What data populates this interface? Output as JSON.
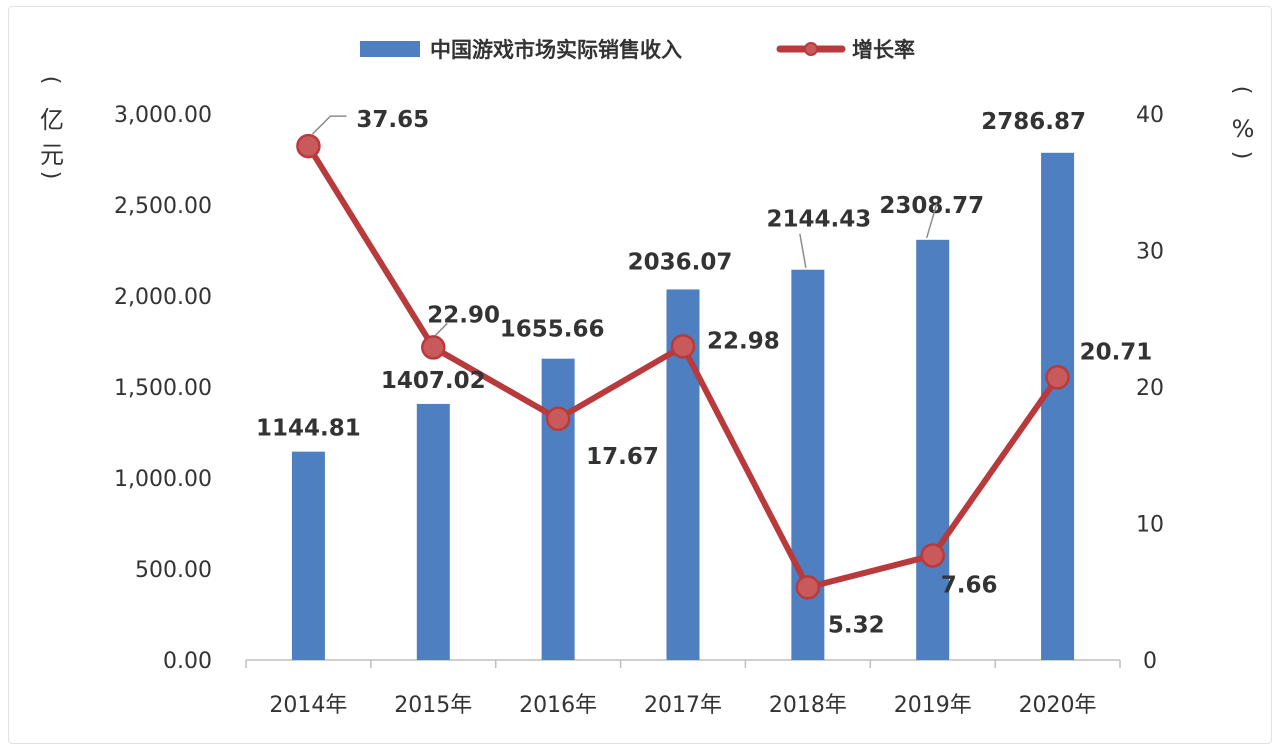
{
  "chart_data": {
    "type": "bar",
    "categories": [
      "2014年",
      "2015年",
      "2016年",
      "2017年",
      "2018年",
      "2019年",
      "2020年"
    ],
    "series": [
      {
        "name": "中国游戏市场实际销售收入",
        "type": "bar",
        "axis": "left",
        "values": [
          1144.81,
          1407.02,
          1655.66,
          2036.07,
          2144.43,
          2308.77,
          2786.87
        ],
        "labels": [
          "1144.81",
          "1407.02",
          "1655.66",
          "2036.07",
          "2144.43",
          "2308.77",
          "2786.87"
        ],
        "color": "#4e7fc0"
      },
      {
        "name": "增长率",
        "type": "line",
        "axis": "right",
        "values": [
          37.65,
          22.9,
          17.67,
          22.98,
          5.32,
          7.66,
          20.71
        ],
        "labels": [
          "37.65",
          "22.90",
          "17.67",
          "22.98",
          "5.32",
          "7.66",
          "20.71"
        ],
        "color": "#b83a3c"
      }
    ],
    "y_left": {
      "unit_chars": [
        "亿",
        "元"
      ],
      "ylim": [
        0,
        3000
      ],
      "ticks": [
        0,
        500,
        1000,
        1500,
        2000,
        2500,
        3000
      ],
      "tick_labels": [
        "0.00",
        "500.00",
        "1,000.00",
        "1,500.00",
        "2,000.00",
        "2,500.00",
        "3,000.00"
      ]
    },
    "y_right": {
      "unit_chars": [
        "%"
      ],
      "ylim": [
        0,
        40
      ],
      "ticks": [
        0,
        10,
        20,
        30,
        40
      ],
      "tick_labels": [
        "0",
        "10",
        "20",
        "30",
        "40"
      ]
    },
    "legend": "top-center",
    "grid": false
  }
}
